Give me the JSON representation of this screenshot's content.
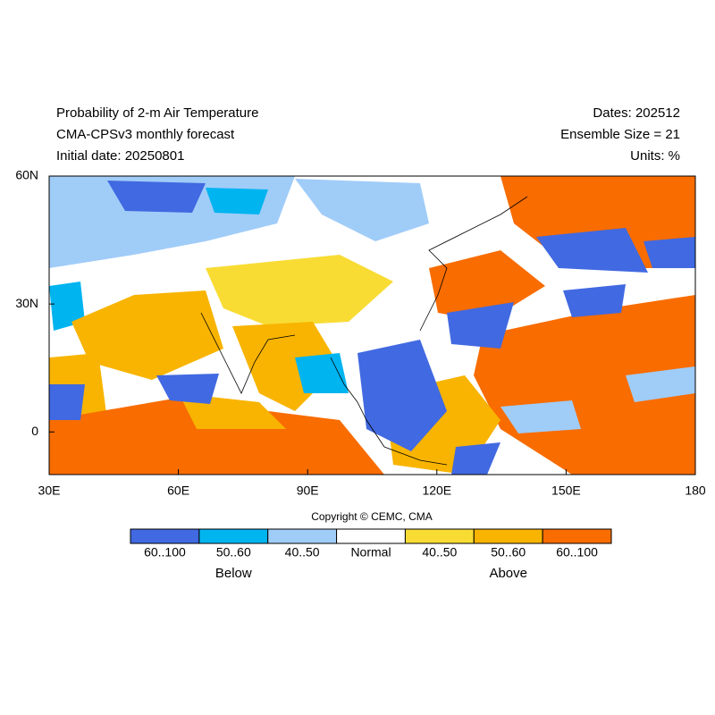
{
  "header": {
    "left_lines": [
      "Probability of 2-m Air Temperature",
      "CMA-CPSv3 monthly forecast",
      "Initial date: 20250801"
    ],
    "right_lines": [
      "Dates: 202512",
      "Ensemble Size = 21",
      "Units: %"
    ]
  },
  "map": {
    "lon_range": [
      30,
      180
    ],
    "lat_range": [
      -10,
      60
    ],
    "x_ticks": [
      {
        "value": 30,
        "label": "30E"
      },
      {
        "value": 60,
        "label": "60E"
      },
      {
        "value": 90,
        "label": "90E"
      },
      {
        "value": 120,
        "label": "120E"
      },
      {
        "value": 150,
        "label": "150E"
      },
      180
    ],
    "y_ticks": [
      {
        "value": 60,
        "label": "60N"
      },
      {
        "value": 30,
        "label": "30N"
      },
      0
    ]
  },
  "copyright": "Copyright © CEMC, CMA",
  "legend": {
    "bins": [
      {
        "label": "60..100",
        "color": "#4169e1"
      },
      {
        "label": "50..60",
        "color": "#00b4f0"
      },
      {
        "label": "40..50",
        "color": "#a0ccf8"
      },
      {
        "label": "Normal",
        "color": "#ffffff"
      },
      {
        "label": "40..50",
        "color": "#f8dc34"
      },
      {
        "label": "50..60",
        "color": "#f8b400"
      },
      {
        "label": "60..100",
        "color": "#f86c00"
      }
    ],
    "below": "Below",
    "above": "Above"
  }
}
